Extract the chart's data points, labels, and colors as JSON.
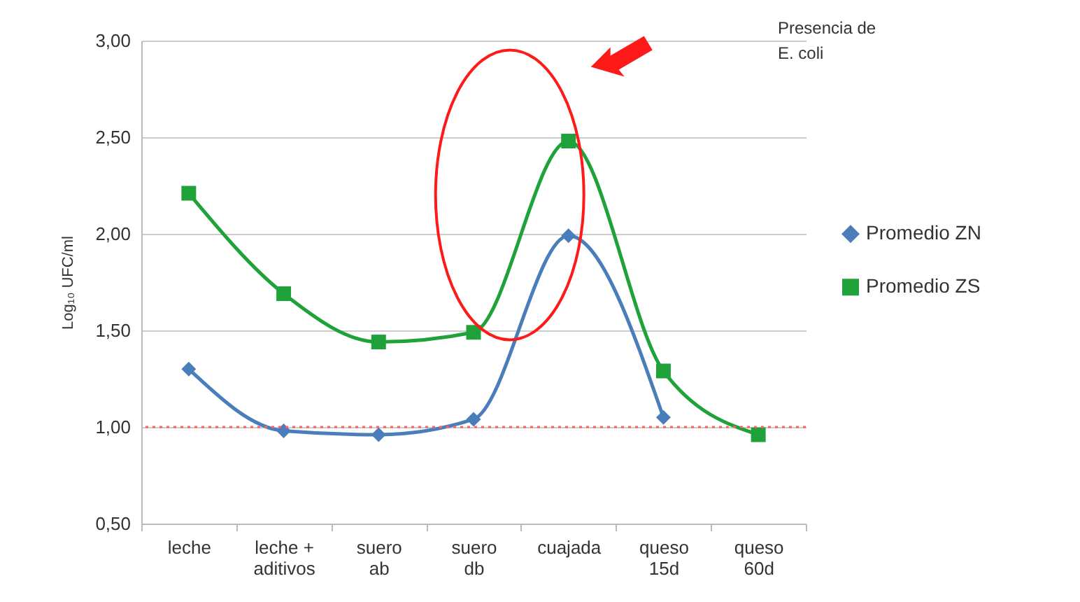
{
  "chart_data": {
    "type": "line",
    "ylabel": "Log₁₀ UFC/ml",
    "categories": [
      "leche",
      "leche + aditivos",
      "suero ab",
      "suero db",
      "cuajada",
      "queso 15d",
      "queso 60d"
    ],
    "series": [
      {
        "name": "Promedio ZN",
        "color": "#4a7ebb",
        "marker": "diamond",
        "values": [
          1.3,
          0.98,
          0.96,
          1.04,
          1.99,
          1.05,
          null
        ]
      },
      {
        "name": "Promedio ZS",
        "color": "#1fa23a",
        "marker": "square",
        "values": [
          2.21,
          1.69,
          1.44,
          1.49,
          2.48,
          1.29,
          0.96
        ]
      }
    ],
    "ylim": [
      0.5,
      3.0
    ],
    "yticks": [
      {
        "value": 0.5,
        "label": "0,50"
      },
      {
        "value": 1.0,
        "label": "1,00"
      },
      {
        "value": 1.5,
        "label": "1,50"
      },
      {
        "value": 2.0,
        "label": "2,00"
      },
      {
        "value": 2.5,
        "label": "2,50"
      },
      {
        "value": 3.0,
        "label": "3,00"
      }
    ],
    "ref_lines": [
      {
        "axis": "y",
        "value": 1.0,
        "color": "#ff6060",
        "line_style": "dotted"
      }
    ],
    "annotations": [
      "Presencia de\nE. coli"
    ],
    "grid": "y",
    "legend": "right"
  }
}
